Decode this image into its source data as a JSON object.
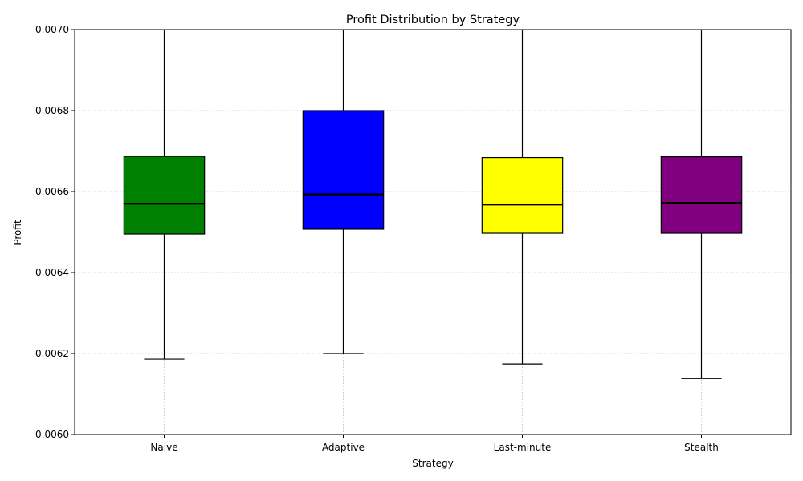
{
  "chart_data": {
    "type": "box",
    "title": "Profit Distribution by Strategy",
    "xlabel": "Strategy",
    "ylabel": "Profit",
    "ylim": [
      0.006,
      0.007
    ],
    "yticks": [
      "0.0060",
      "0.0062",
      "0.0064",
      "0.0066",
      "0.0068",
      "0.0070"
    ],
    "ytick_values": [
      0.006,
      0.0062,
      0.0064,
      0.0066,
      0.0068,
      0.007
    ],
    "grid": true,
    "categories": [
      "Naive",
      "Adaptive",
      "Last-minute",
      "Stealth"
    ],
    "series": [
      {
        "category": "Naive",
        "color": "#008000",
        "whisker_low": 0.006186,
        "q1": 0.006495,
        "median": 0.00657,
        "q3": 0.006687,
        "whisker_high": 0.007
      },
      {
        "category": "Adaptive",
        "color": "#0000ff",
        "whisker_low": 0.0062,
        "q1": 0.006507,
        "median": 0.006593,
        "q3": 0.0068,
        "whisker_high": 0.007
      },
      {
        "category": "Last-minute",
        "color": "#ffff00",
        "whisker_low": 0.006174,
        "q1": 0.006497,
        "median": 0.006568,
        "q3": 0.006684,
        "whisker_high": 0.007
      },
      {
        "category": "Stealth",
        "color": "#800080",
        "whisker_low": 0.006138,
        "q1": 0.006497,
        "median": 0.006572,
        "q3": 0.006686,
        "whisker_high": 0.007
      }
    ]
  }
}
